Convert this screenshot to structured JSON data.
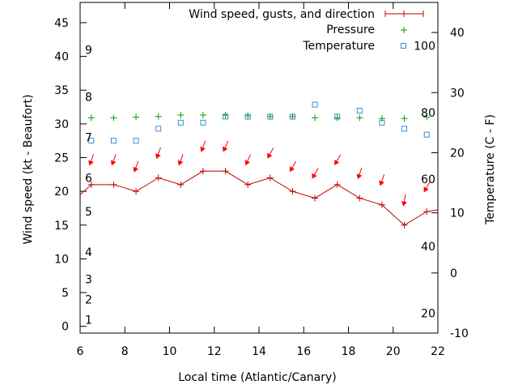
{
  "chart_data": {
    "type": "line",
    "xlabel": "Local time (Atlantic/Canary)",
    "ylabel": "Wind speed (kt - Beaufort)",
    "y2label": "Temperature (C - F)",
    "xlim": [
      6,
      22
    ],
    "ylim": [
      -1,
      48
    ],
    "y2lim": [
      -10,
      45
    ],
    "x_ticks": [
      6,
      8,
      10,
      12,
      14,
      16,
      18,
      20,
      22
    ],
    "y_ticks": [
      0,
      5,
      10,
      15,
      20,
      25,
      30,
      35,
      40,
      45
    ],
    "y2_ticks": [
      -10,
      0,
      10,
      20,
      30,
      40
    ],
    "beaufort_labels": [
      {
        "label": "1",
        "wind_kt": 1
      },
      {
        "label": "2",
        "wind_kt": 4
      },
      {
        "label": "3",
        "wind_kt": 7
      },
      {
        "label": "4",
        "wind_kt": 11
      },
      {
        "label": "5",
        "wind_kt": 17
      },
      {
        "label": "6",
        "wind_kt": 22
      },
      {
        "label": "7",
        "wind_kt": 28
      },
      {
        "label": "8",
        "wind_kt": 34
      },
      {
        "label": "9",
        "wind_kt": 41
      }
    ],
    "fahrenheit_labels": [
      {
        "label": "20",
        "temp_c": -6.7
      },
      {
        "label": "40",
        "temp_c": 4.4
      },
      {
        "label": "60",
        "temp_c": 15.6
      },
      {
        "label": "80",
        "temp_c": 26.7
      },
      {
        "label": "100",
        "temp_c": 37.8
      }
    ],
    "legend_position": "top-right",
    "series": [
      {
        "name": "Wind speed, gusts, and direction",
        "color": "#c00000",
        "x": [
          6.5,
          7.5,
          8.5,
          9.5,
          10.5,
          11.5,
          12.5,
          13.5,
          14.5,
          15.5,
          16.5,
          17.5,
          18.5,
          19.5,
          20.5,
          21.5
        ],
        "values": [
          21,
          21,
          20,
          22,
          21,
          23,
          23,
          21,
          22,
          20,
          19,
          21,
          19,
          18,
          15,
          17
        ]
      },
      {
        "name": "Pressure",
        "color": "#00a000",
        "x": [
          6.5,
          7.5,
          8.5,
          9.5,
          10.5,
          11.5,
          12.5,
          13.5,
          14.5,
          15.5,
          16.5,
          17.5,
          18.5,
          19.5,
          20.5,
          21.5
        ],
        "values": [
          30.9,
          30.9,
          31.0,
          31.1,
          31.3,
          31.3,
          31.3,
          31.2,
          31.1,
          31.1,
          30.9,
          30.9,
          30.9,
          30.8,
          30.8,
          31.0
        ]
      },
      {
        "name": "Temperature",
        "color": "#3a8fd9",
        "axis": "y2",
        "x": [
          6.5,
          7.5,
          8.5,
          9.5,
          10.5,
          11.5,
          12.5,
          13.5,
          14.5,
          15.5,
          16.5,
          17.5,
          18.5,
          19.5,
          20.5,
          21.5
        ],
        "values": [
          22,
          22,
          22,
          24,
          25,
          25,
          26,
          26,
          26,
          26,
          28,
          26,
          27,
          25,
          24,
          23
        ]
      }
    ],
    "direction_arrows": {
      "color": "#ff0000",
      "x": [
        6.5,
        7.5,
        8.5,
        9.5,
        10.5,
        11.5,
        12.5,
        13.5,
        14.5,
        15.5,
        16.5,
        17.5,
        18.5,
        19.5,
        20.5,
        21.5
      ],
      "y": [
        24.6,
        24.6,
        23.6,
        25.6,
        24.6,
        26.6,
        26.6,
        24.6,
        25.6,
        23.6,
        22.6,
        24.6,
        22.6,
        21.6,
        18.6,
        20.6
      ],
      "direction_deg": [
        20,
        20,
        20,
        20,
        20,
        20,
        25,
        25,
        30,
        30,
        30,
        30,
        20,
        20,
        10,
        30
      ]
    }
  }
}
